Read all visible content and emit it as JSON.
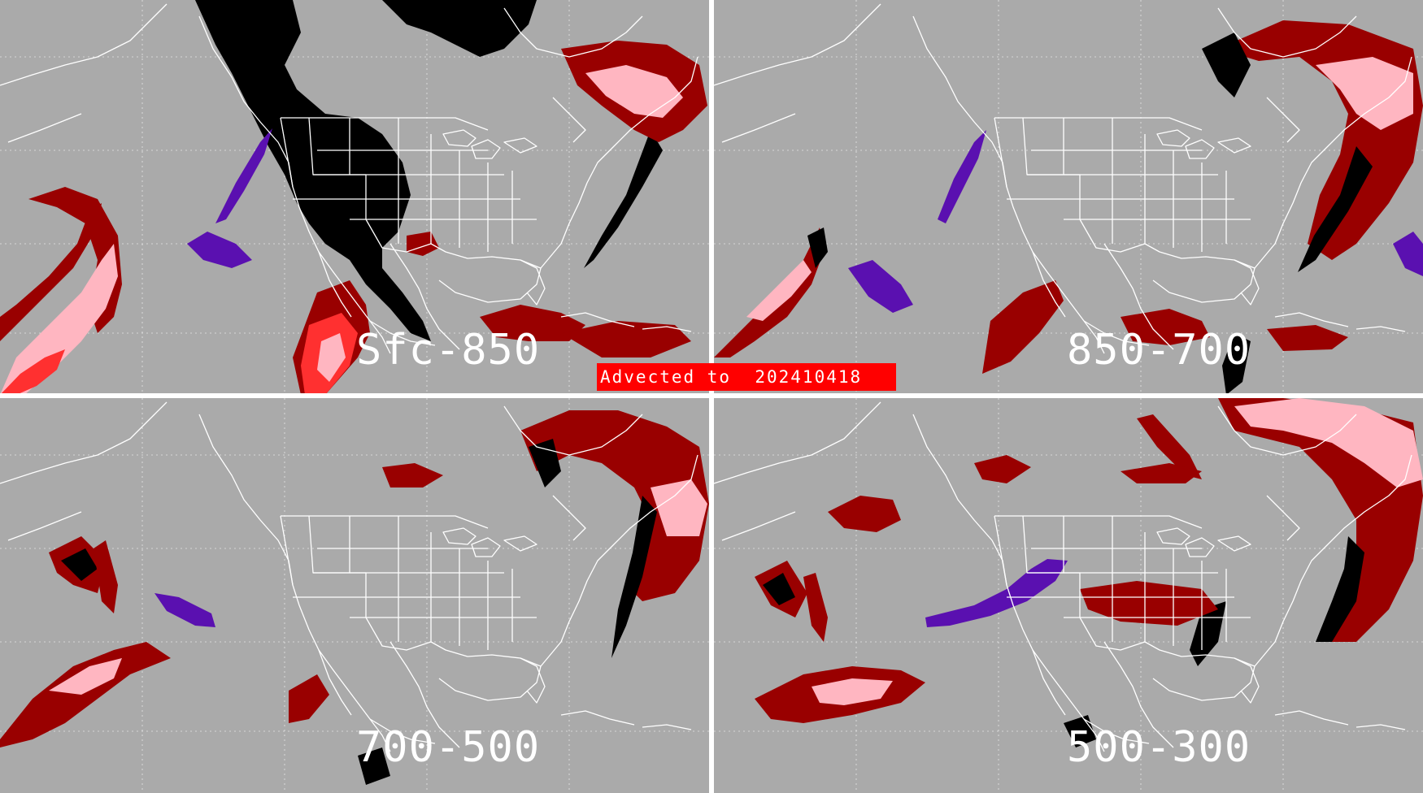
{
  "banner": {
    "text": "Advected to  202410418"
  },
  "panels": [
    {
      "label": "Sfc-850"
    },
    {
      "label": "850-700"
    },
    {
      "label": "700-500"
    },
    {
      "label": "500-300"
    }
  ],
  "colors": {
    "background": "#aaaaaa",
    "coastline": "#ffffff",
    "grid": "#ffffff",
    "divider": "#ffffff",
    "black": "#000000",
    "dark_red": "#990000",
    "red": "#ff0000",
    "pink": "#ffb6c1",
    "purple": "#5a10b0"
  }
}
